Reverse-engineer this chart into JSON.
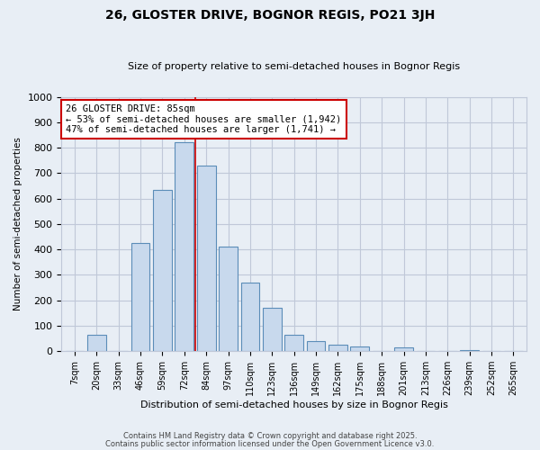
{
  "title": "26, GLOSTER DRIVE, BOGNOR REGIS, PO21 3JH",
  "subtitle": "Size of property relative to semi-detached houses in Bognor Regis",
  "xlabel": "Distribution of semi-detached houses by size in Bognor Regis",
  "ylabel": "Number of semi-detached properties",
  "bins": [
    "7sqm",
    "20sqm",
    "33sqm",
    "46sqm",
    "59sqm",
    "72sqm",
    "84sqm",
    "97sqm",
    "110sqm",
    "123sqm",
    "136sqm",
    "149sqm",
    "162sqm",
    "175sqm",
    "188sqm",
    "201sqm",
    "213sqm",
    "226sqm",
    "239sqm",
    "252sqm",
    "265sqm"
  ],
  "values": [
    0,
    65,
    0,
    425,
    635,
    820,
    730,
    410,
    270,
    170,
    65,
    40,
    25,
    20,
    0,
    15,
    0,
    0,
    5,
    0,
    0
  ],
  "property_bin_index": 6,
  "bar_color": "#c8d9ed",
  "bar_edge_color": "#5b8db8",
  "vline_color": "#cc0000",
  "annotation_text": "26 GLOSTER DRIVE: 85sqm\n← 53% of semi-detached houses are smaller (1,942)\n47% of semi-detached houses are larger (1,741) →",
  "annotation_box_color": "#ffffff",
  "annotation_box_edge": "#cc0000",
  "ylim": [
    0,
    1000
  ],
  "yticks": [
    0,
    100,
    200,
    300,
    400,
    500,
    600,
    700,
    800,
    900,
    1000
  ],
  "grid_color": "#c0c8d8",
  "bg_color": "#e8eef5",
  "footer1": "Contains HM Land Registry data © Crown copyright and database right 2025.",
  "footer2": "Contains public sector information licensed under the Open Government Licence v3.0."
}
